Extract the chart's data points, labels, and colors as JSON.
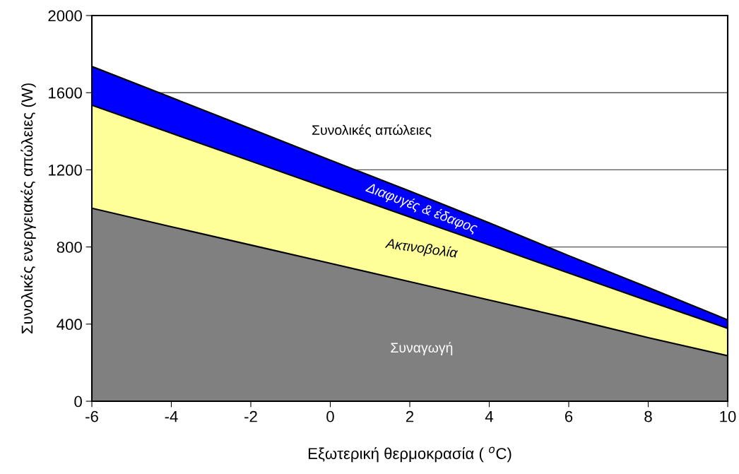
{
  "chart_data": {
    "type": "area",
    "stacked": true,
    "xlabel": "Εξωτερική θερμοκρασία ( $^{o}$C)",
    "ylabel": "Συνολικές ενεργειακές απώλειες (W)",
    "x": [
      -6,
      -4,
      -2,
      0,
      2,
      4,
      6,
      8,
      10
    ],
    "series": [
      {
        "name": "Συναγωγή",
        "color": "#808080",
        "values": [
          1001,
          905,
          810,
          715,
          620,
          525,
          430,
          330,
          236
        ]
      },
      {
        "name": "Ακτινοβολία",
        "color": "#ffff99",
        "values": [
          534,
          485,
          435,
          385,
          335,
          285,
          235,
          190,
          142
        ]
      },
      {
        "name": "Διαφυγές & έδαφος",
        "color": "#0000ff",
        "values": [
          201,
          185,
          168,
          150,
          135,
          115,
          90,
          70,
          44
        ]
      }
    ],
    "annotations": [
      "Συνολικές απώλειες"
    ],
    "xlim": [
      -6,
      10
    ],
    "xticks": [
      -6,
      -4,
      -2,
      0,
      2,
      4,
      6,
      8,
      10
    ],
    "ylim": [
      0,
      2000
    ],
    "yticks": [
      0,
      400,
      800,
      1200,
      1600,
      2000
    ],
    "grid": "y",
    "legend": false
  }
}
